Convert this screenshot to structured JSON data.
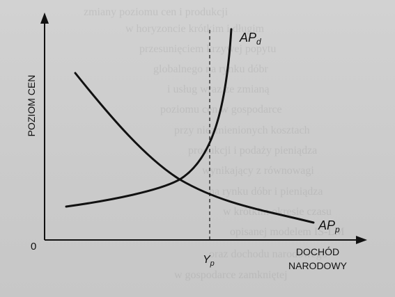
{
  "axes": {
    "y_label": "POZIOM CEN",
    "origin_label": "0",
    "x_label_line1": "DOCHÓD",
    "x_label_line2": "NARODOWY"
  },
  "curves": {
    "demand_main": "AP",
    "demand_sub": "d",
    "supply_main": "AP",
    "supply_sub": "p"
  },
  "marker": {
    "yp_main": "Y",
    "yp_sub": "p"
  }
}
